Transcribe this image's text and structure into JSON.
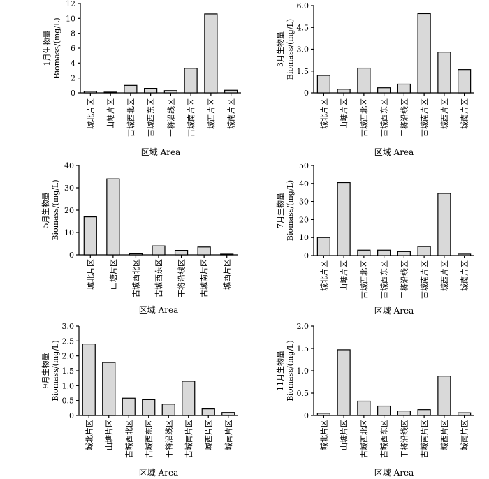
{
  "chart_data": [
    {
      "type": "bar",
      "ylabel_line1": "1月生物量",
      "ylabel_line2": "Biomass/(mg/L)",
      "xlabel": "区域 Area",
      "categories": [
        "城北片区",
        "山塘片区",
        "古城西北区",
        "古城西东区",
        "干将沿线区",
        "古城南片区",
        "城西片区",
        "城南片区"
      ],
      "values": [
        0.2,
        0.1,
        1.0,
        0.6,
        0.3,
        3.3,
        10.6,
        0.35
      ],
      "ylim": [
        0,
        12
      ],
      "yticks": [
        "0",
        "2",
        "4",
        "6",
        "8",
        "10",
        "12"
      ]
    },
    {
      "type": "bar",
      "ylabel_line1": "3月生物量",
      "ylabel_line2": "Biomass/(mg/L)",
      "xlabel": "区域 Area",
      "categories": [
        "城北片区",
        "山塘片区",
        "古城西北区",
        "古城西东区",
        "干将沿线区",
        "古城南片区",
        "城西片区",
        "城南片区"
      ],
      "values": [
        1.2,
        0.25,
        1.7,
        0.35,
        0.6,
        5.45,
        2.8,
        1.6
      ],
      "ylim": [
        0,
        6
      ],
      "yticks": [
        "0",
        "1.5",
        "3.0",
        "4.5",
        "6.0"
      ]
    },
    {
      "type": "bar",
      "ylabel_line1": "5月生物量",
      "ylabel_line2": "Biomass/(mg/L)",
      "xlabel": "区域 Area",
      "categories": [
        "城北片区",
        "山塘片区",
        "古城西北区",
        "古城西东区",
        "干将沿线区",
        "古城南片区",
        "城西片区"
      ],
      "values": [
        17,
        34,
        0.5,
        4,
        2,
        3.5,
        0.2
      ],
      "ylim": [
        0,
        40
      ],
      "yticks": [
        "0",
        "10",
        "20",
        "30",
        "40"
      ]
    },
    {
      "type": "bar",
      "ylabel_line1": "7月生物量",
      "ylabel_line2": "Biomass/(mg/L)",
      "xlabel": "区域 Area",
      "categories": [
        "城北片区",
        "山塘片区",
        "古城西北区",
        "古城西东区",
        "干将沿线区",
        "古城南片区",
        "城西片区",
        "城南片区"
      ],
      "values": [
        10,
        40.5,
        3,
        3,
        2.2,
        5,
        34.5,
        0.8
      ],
      "ylim": [
        0,
        50
      ],
      "yticks": [
        "0",
        "10",
        "20",
        "30",
        "40",
        "50"
      ]
    },
    {
      "type": "bar",
      "ylabel_line1": "9月生物量",
      "ylabel_line2": "Biomass/(mg/L)",
      "xlabel": "区域 Area",
      "categories": [
        "城北片区",
        "山塘片区",
        "古城西北区",
        "古城西东区",
        "干将沿线区",
        "古城南片区",
        "城西片区",
        "城南片区"
      ],
      "values": [
        2.4,
        1.78,
        0.58,
        0.53,
        0.38,
        1.15,
        0.22,
        0.1
      ],
      "ylim": [
        0,
        3
      ],
      "yticks": [
        "0",
        "0.5",
        "1.0",
        "1.5",
        "2.0",
        "2.5",
        "3.0"
      ]
    },
    {
      "type": "bar",
      "ylabel_line1": "11月生物量",
      "ylabel_line2": "Biomass/(mg/L)",
      "xlabel": "区域 Area",
      "categories": [
        "城北片区",
        "山塘片区",
        "古城西北区",
        "古城西东区",
        "干将沿线区",
        "古城南片区",
        "城西片区",
        "城南片区"
      ],
      "values": [
        0.05,
        1.47,
        0.32,
        0.21,
        0.1,
        0.13,
        0.88,
        0.06
      ],
      "ylim": [
        0,
        2
      ],
      "yticks": [
        "0",
        "0.5",
        "1.0",
        "1.5",
        "2.0"
      ]
    }
  ]
}
